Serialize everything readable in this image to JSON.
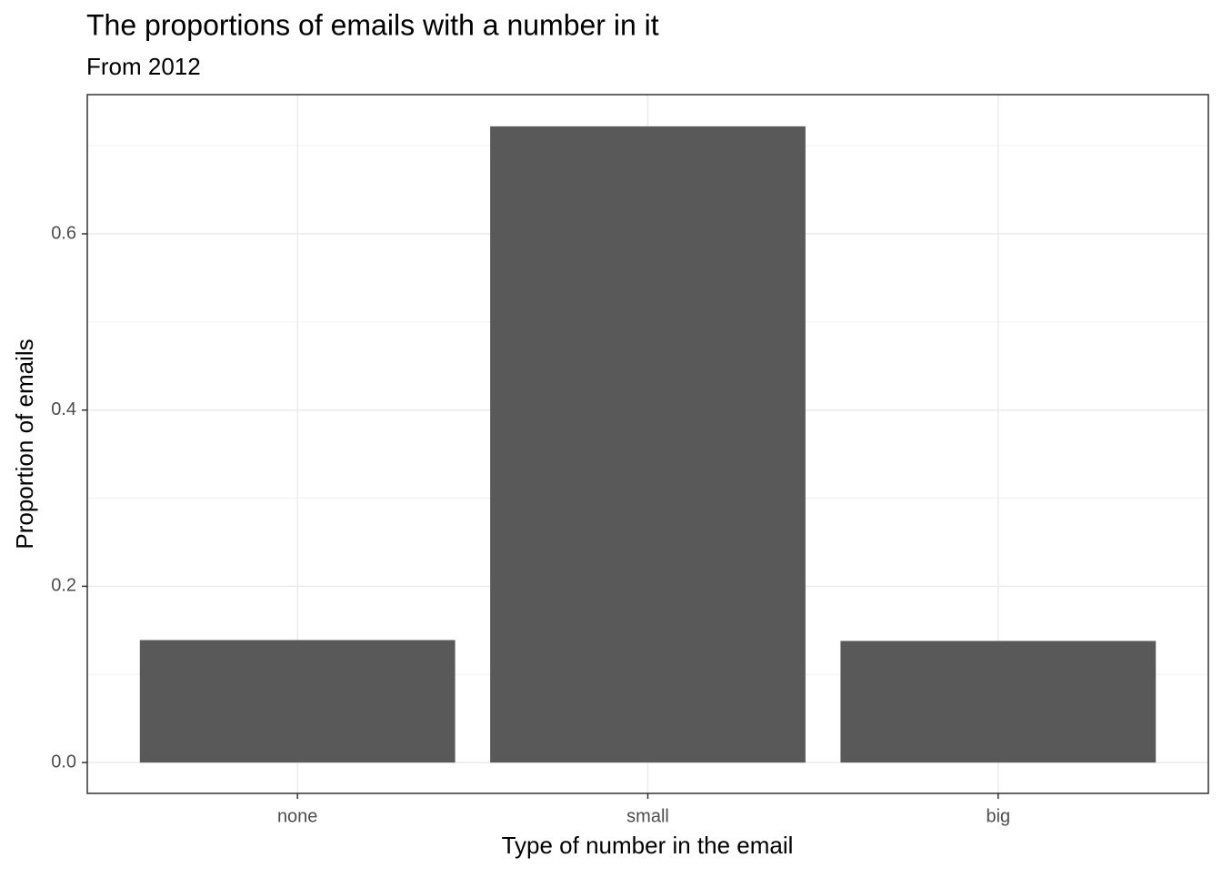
{
  "chart_data": {
    "type": "bar",
    "title": "The proportions of emails with a number in it",
    "subtitle": "From 2012",
    "x_label": "Type of number in the email",
    "y_label": "Proportion of emails",
    "categories": [
      "none",
      "small",
      "big"
    ],
    "values": [
      0.139,
      0.722,
      0.138
    ],
    "color": "#595959",
    "ylim": [
      -0.035,
      0.758
    ],
    "yticks": [
      {
        "value": 0,
        "label": "0.0"
      },
      0.2,
      0.4,
      0.6
    ],
    "grid": true
  }
}
